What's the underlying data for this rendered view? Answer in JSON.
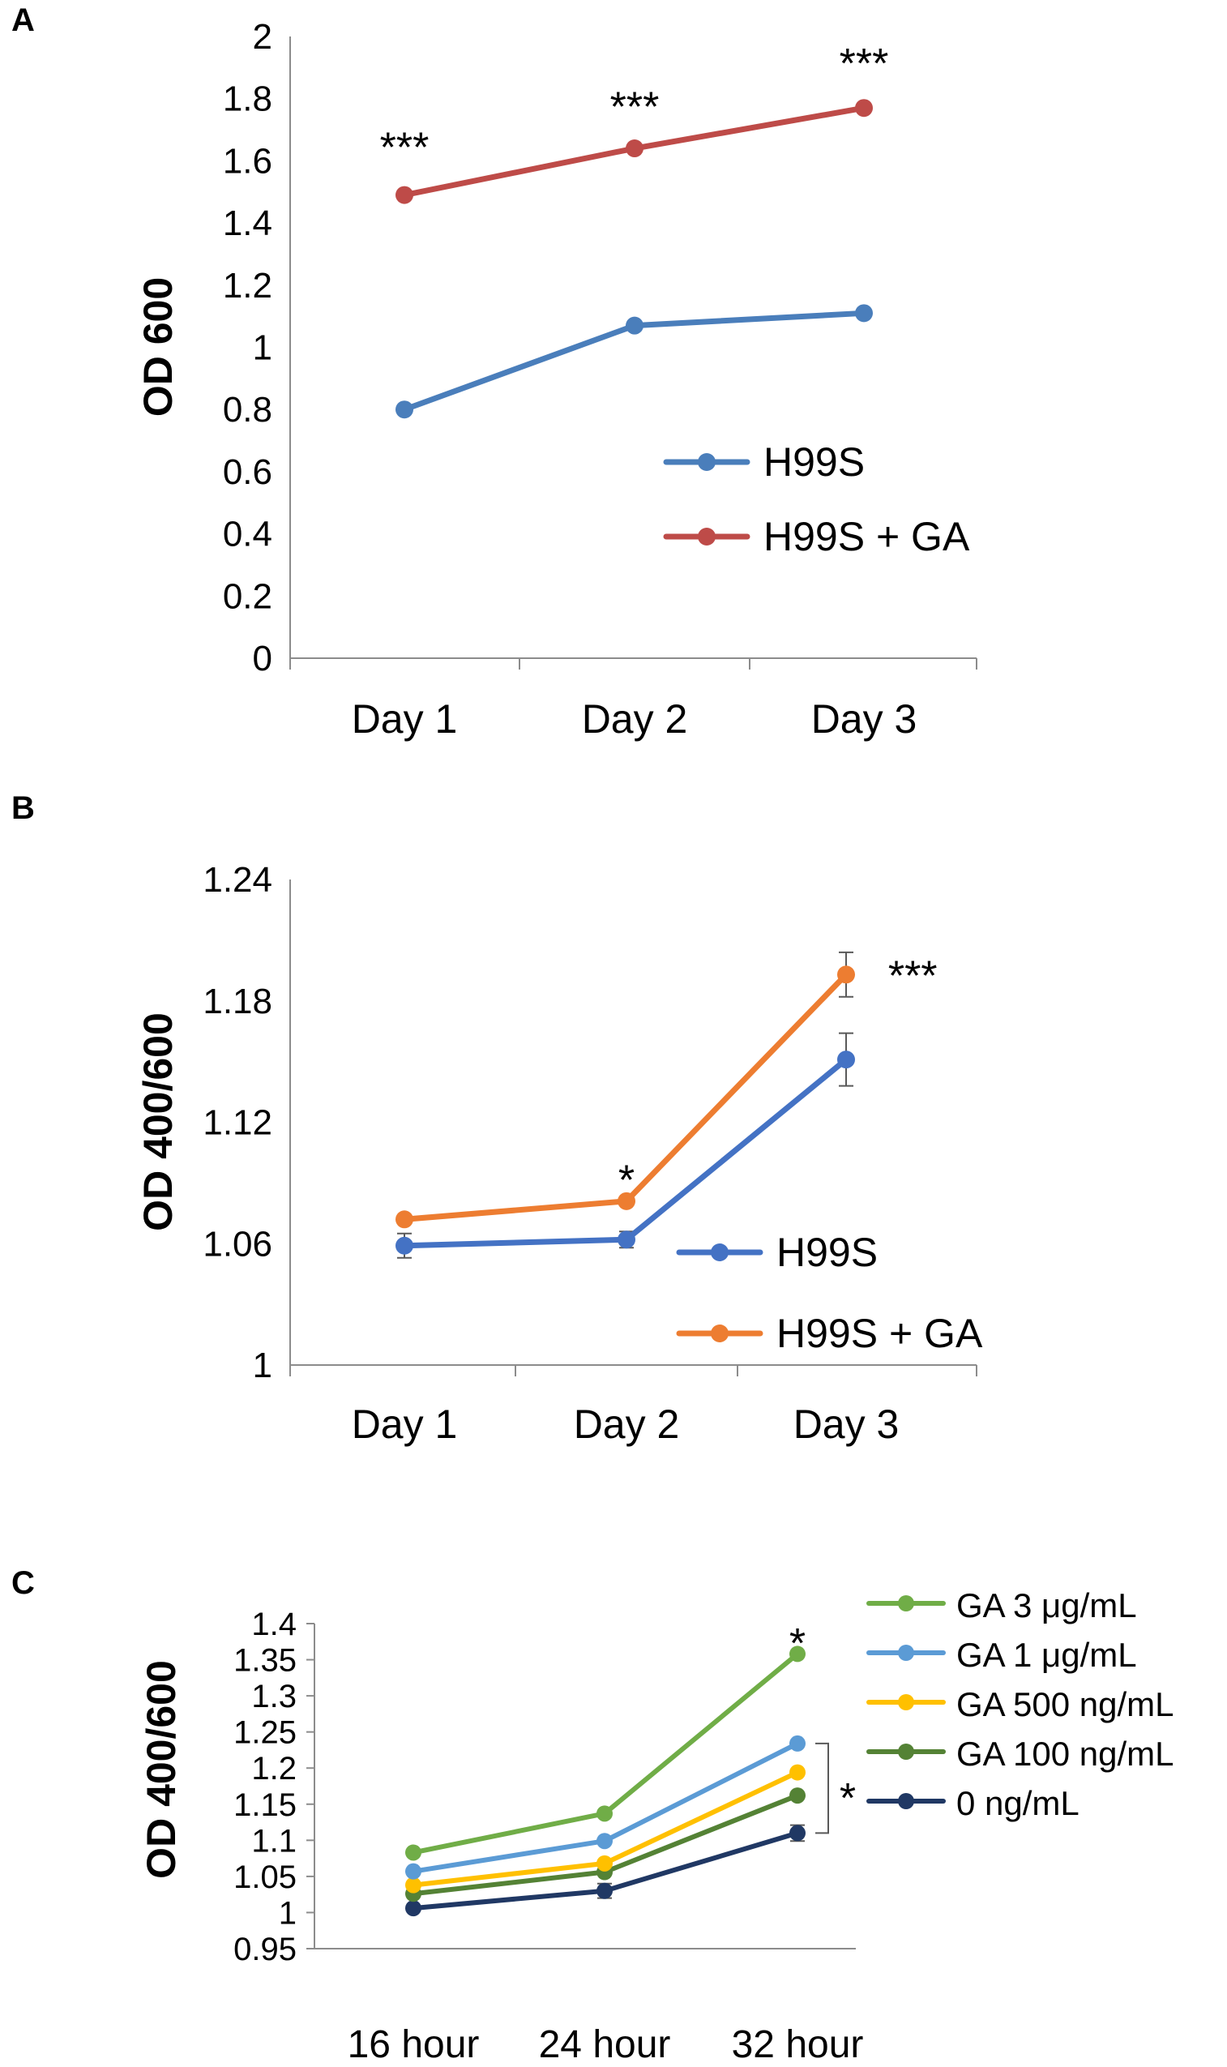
{
  "chart_data": [
    {
      "panel": "A",
      "type": "line",
      "ylabel": "OD 600",
      "xlabel": "",
      "ylim": [
        0,
        2
      ],
      "yticks": [
        "0",
        "0.2",
        "0.4",
        "0.6",
        "0.8",
        "1",
        "1.2",
        "1.4",
        "1.6",
        "1.8",
        "2"
      ],
      "categories": [
        "Day 1",
        "Day 2",
        "Day 3"
      ],
      "series": [
        {
          "name": "H99S",
          "color": "#4a7ebb",
          "values": [
            0.8,
            1.07,
            1.11
          ]
        },
        {
          "name": "H99S + GA",
          "color": "#be4b48",
          "values": [
            1.49,
            1.64,
            1.77
          ]
        }
      ],
      "annotations": [
        {
          "text": "***",
          "category": 0,
          "y": 1.66
        },
        {
          "text": "***",
          "category": 1,
          "y": 1.79
        },
        {
          "text": "***",
          "category": 2,
          "y": 1.93
        }
      ],
      "legend": "center-right"
    },
    {
      "panel": "B",
      "type": "line",
      "ylabel": "OD 400/600",
      "xlabel": "",
      "ylim": [
        1,
        1.24
      ],
      "yticks": [
        "1",
        "1.06",
        "1.12",
        "1.18",
        "1.24"
      ],
      "categories": [
        "Day 1",
        "Day 2",
        "Day 3"
      ],
      "series": [
        {
          "name": "H99S",
          "color": "#4472c4",
          "values": [
            1.059,
            1.062,
            1.151
          ],
          "errors": [
            0.006,
            0.004,
            0.013
          ]
        },
        {
          "name": "H99S + GA",
          "color": "#ed7d31",
          "values": [
            1.072,
            1.081,
            1.193
          ],
          "errors": [
            0.002,
            0.002,
            0.011
          ]
        }
      ],
      "annotations": [
        {
          "text": "*",
          "category": 1,
          "y": 1.094
        },
        {
          "text": "***",
          "category": 2.3,
          "y": 1.195
        }
      ],
      "legend": "bottom-right"
    },
    {
      "panel": "C",
      "type": "line",
      "ylabel": "OD 400/600",
      "xlabel": "",
      "ylim": [
        0.95,
        1.4
      ],
      "yticks": [
        "0.95",
        "1",
        "1.05",
        "1.1",
        "1.15",
        "1.2",
        "1.25",
        "1.3",
        "1.35",
        "1.4"
      ],
      "categories": [
        "16 hour",
        "24 hour",
        "32 hour"
      ],
      "series": [
        {
          "name": "GA 3 μg/mL",
          "color": "#70ad47",
          "values": [
            1.083,
            1.137,
            1.358
          ]
        },
        {
          "name": "GA 1 μg/mL",
          "color": "#5b9bd5",
          "values": [
            1.057,
            1.099,
            1.234
          ]
        },
        {
          "name": "GA 500 ng/mL",
          "color": "#ffc000",
          "values": [
            1.038,
            1.068,
            1.194
          ]
        },
        {
          "name": "GA 100 ng/mL",
          "color": "#548235",
          "values": [
            1.026,
            1.056,
            1.162
          ]
        },
        {
          "name": "0 ng/mL",
          "color": "#203864",
          "values": [
            1.006,
            1.03,
            1.11
          ],
          "errors": [
            0.003,
            0.01,
            0.011
          ]
        }
      ],
      "annotations": [
        {
          "text": "*",
          "category": 2,
          "y": 1.38
        },
        {
          "text": "*",
          "bracket": true
        }
      ],
      "legend": "right"
    }
  ]
}
